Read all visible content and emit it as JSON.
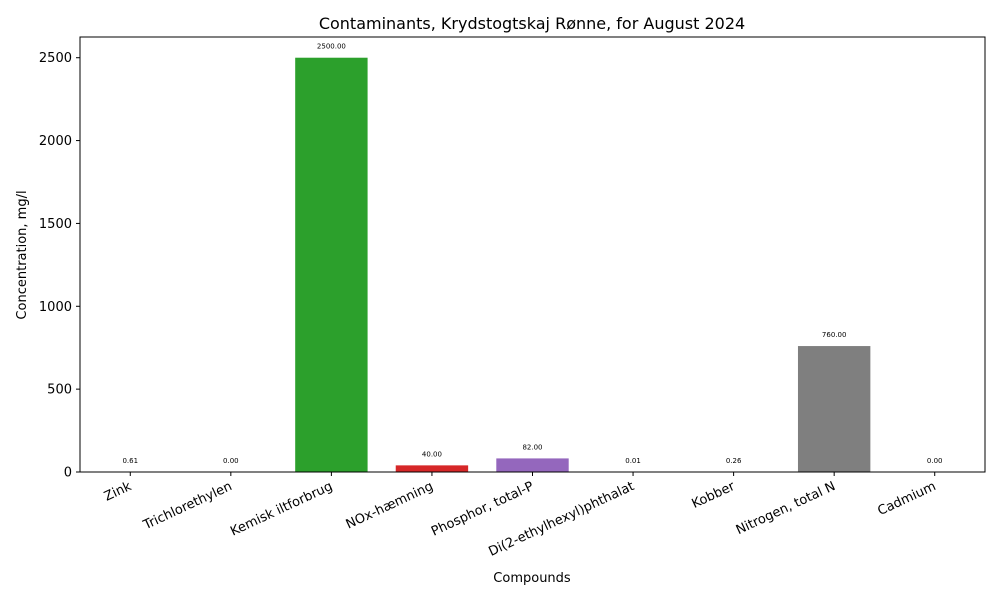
{
  "chart_data": {
    "type": "bar",
    "title": "Contaminants, Krydstogtskaj Rønne, for August 2024",
    "xlabel": "Compounds",
    "ylabel": "Concentration, mg/l",
    "ylim": [
      0,
      2625
    ],
    "yticks": [
      "0",
      "500",
      "1000",
      "1500",
      "2000",
      "2500"
    ],
    "grid": false,
    "categories": [
      "Zink",
      "Trichlorethylen",
      "Kemisk iltforbrug",
      "NOx-hæmning",
      "Phosphor, total-P",
      "Di(2-ethylhexyl)phthalat",
      "Kobber",
      "Nitrogen, total N",
      "Cadmium"
    ],
    "values": [
      0.61,
      0.0,
      2500.0,
      40.0,
      82.0,
      0.01,
      0.26,
      760.0,
      0.0
    ],
    "value_labels": [
      "0.61",
      "0.00",
      "2500.00",
      "40.00",
      "82.00",
      "0.01",
      "0.26",
      "760.00",
      "0.00"
    ],
    "colors": [
      "#1f77b4",
      "#ff7f0e",
      "#2ca02c",
      "#d62728",
      "#9467bd",
      "#8c564b",
      "#e377c2",
      "#7f7f7f",
      "#bcbd22"
    ]
  }
}
